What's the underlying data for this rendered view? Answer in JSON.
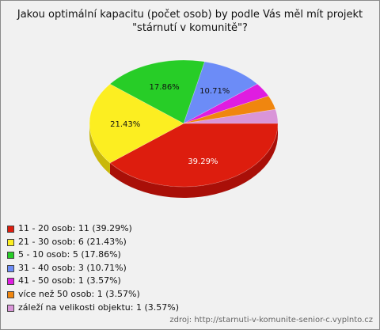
{
  "title_lines": [
    "Jakou optimální kapacitu (počet osob) by podle Vás měl mít projekt",
    "\"stárnutí v komunitě\"?"
  ],
  "source": "zdroj: http://starnuti-v-komunite-senior-c.vyplnto.cz",
  "chart_data": {
    "type": "pie",
    "title": "Jakou optimální kapacitu (počet osob) by podle Vás měl mít projekt \"stárnutí v komunitě\"?",
    "slices": [
      {
        "label": "11 - 20 osob",
        "count": 11,
        "percent": 39.29,
        "color": "#dd1d0e",
        "dark": "#a90f08"
      },
      {
        "label": "21 - 30 osob",
        "count": 6,
        "percent": 21.43,
        "color": "#fcee21",
        "dark": "#c9b80a"
      },
      {
        "label": "5 - 10 osob",
        "count": 5,
        "percent": 17.86,
        "color": "#27cd27",
        "dark": "#149914"
      },
      {
        "label": "31 - 40 osob",
        "count": 3,
        "percent": 10.71,
        "color": "#6c8cf7",
        "dark": "#4662c6"
      },
      {
        "label": "41 - 50 osob",
        "count": 1,
        "percent": 3.57,
        "color": "#df1de0",
        "dark": "#a50fa6"
      },
      {
        "label": "více než 50 osob",
        "count": 1,
        "percent": 3.57,
        "color": "#f0860f",
        "dark": "#bd620a"
      },
      {
        "label": "záleží na velikosti objektu",
        "count": 1,
        "percent": 3.57,
        "color": "#d995d8",
        "dark": "#a96aa8"
      }
    ],
    "data_labels": [
      "39.29%",
      "21.43%",
      "17.86%",
      "10.71%",
      "",
      "",
      ""
    ],
    "legend_position": "bottom-left",
    "legend": [
      "11 - 20 osob: 11 (39.29%)",
      "21 - 30 osob: 6 (21.43%)",
      "5 - 10 osob: 5 (17.86%)",
      "31 - 40 osob: 3 (10.71%)",
      "41 - 50 osob: 1 (3.57%)",
      "více než 50 osob: 1 (3.57%)",
      "záleží na velikosti objektu: 1 (3.57%)"
    ]
  }
}
